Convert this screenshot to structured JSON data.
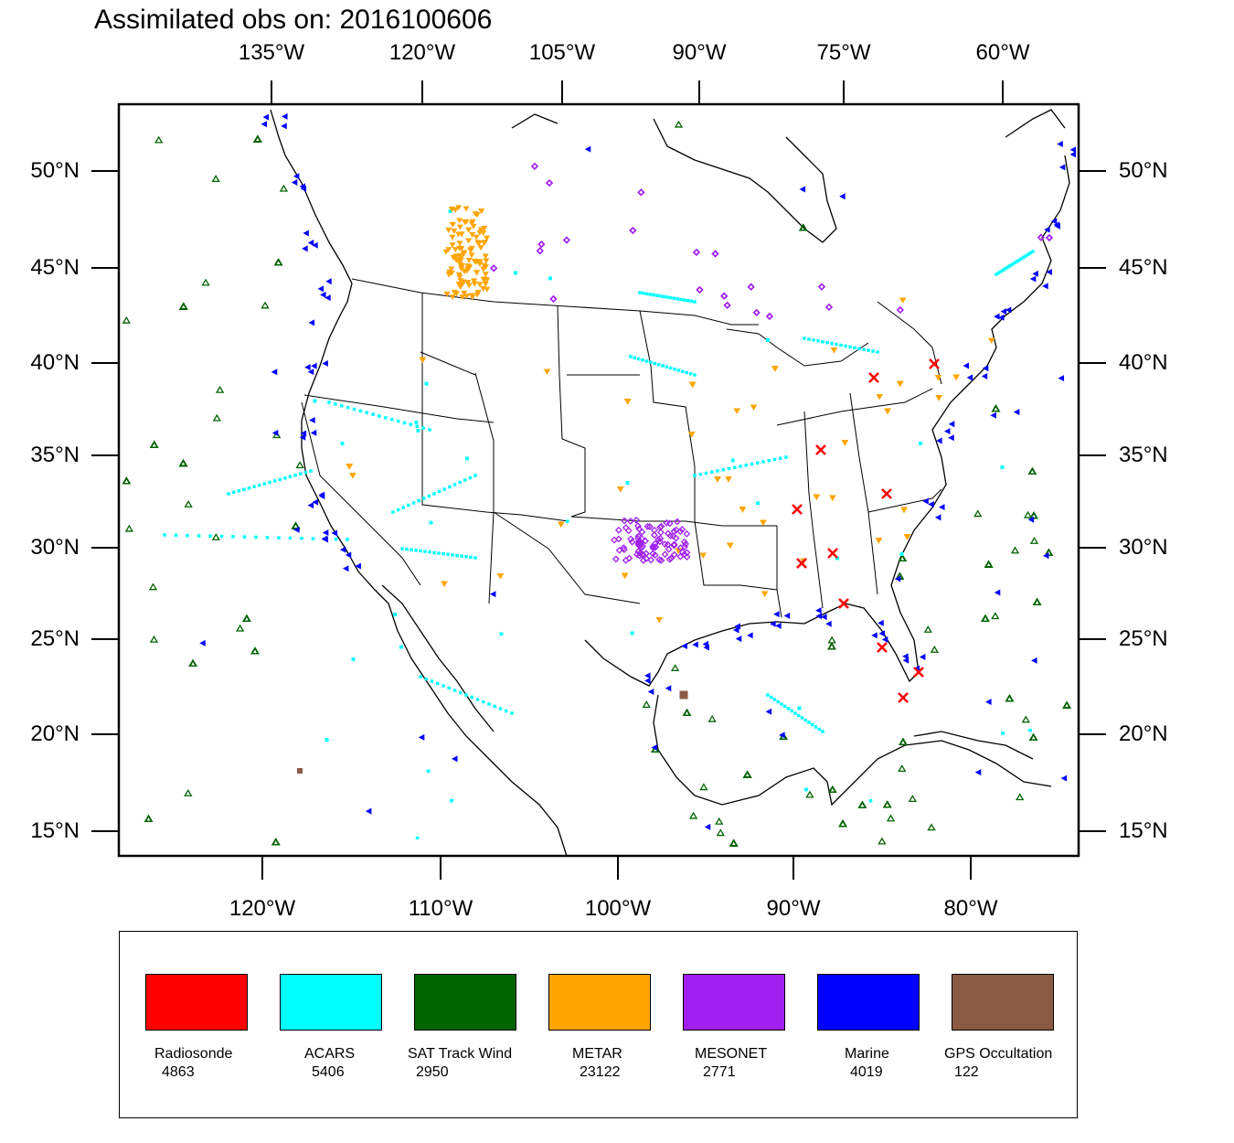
{
  "title": "Assimilated obs on: 2016100606",
  "axes": {
    "top_lon": [
      "135°W",
      "120°W",
      "105°W",
      "90°W",
      "75°W",
      "60°W"
    ],
    "bottom_lon": [
      "120°W",
      "110°W",
      "100°W",
      "90°W",
      "80°W"
    ],
    "lat": [
      "50°N",
      "45°N",
      "40°N",
      "35°N",
      "30°N",
      "25°N",
      "20°N",
      "15°N"
    ]
  },
  "legend": [
    {
      "name": "Radiosonde",
      "count": "4863",
      "color": "#ff0000"
    },
    {
      "name": "ACARS",
      "count": "5406",
      "color": "#00ffff"
    },
    {
      "name": "SAT Track Wind",
      "count": "2950",
      "color": "#006400"
    },
    {
      "name": "METAR",
      "count": "23122",
      "color": "#ffa500"
    },
    {
      "name": "MESONET",
      "count": "2771",
      "color": "#a020f0"
    },
    {
      "name": "Marine",
      "count": "4019",
      "color": "#0000ff"
    },
    {
      "name": "GPS Occultation",
      "count": "122",
      "color": "#8b5a44"
    }
  ]
}
